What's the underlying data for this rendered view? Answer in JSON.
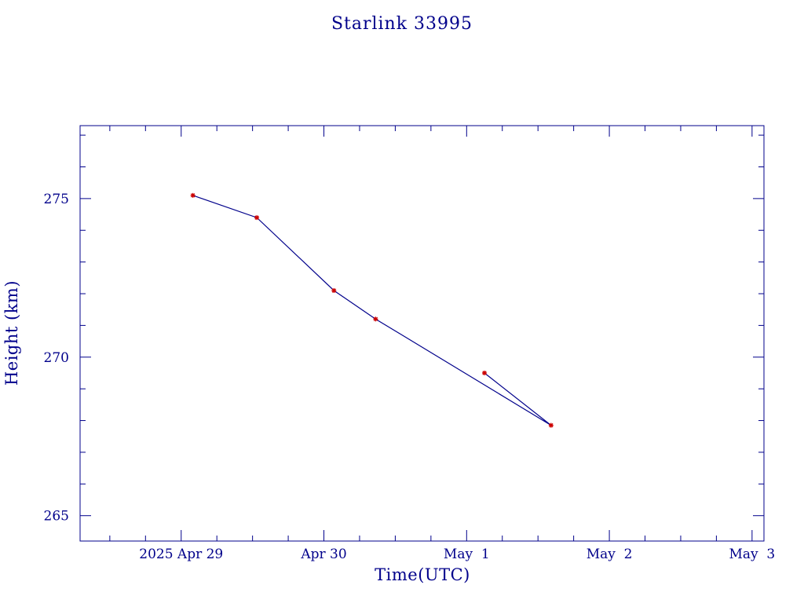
{
  "chart_data": {
    "type": "line",
    "title": "Starlink 33995",
    "xlabel": "Time(UTC)",
    "ylabel": "Height (km)",
    "x_tick_labels": [
      "2025 Apr 29",
      "Apr 30",
      "May  1",
      "May  2",
      "May  3"
    ],
    "x_tick_dates": [
      "2025-04-29",
      "2025-04-30",
      "2025-05-01",
      "2025-05-02",
      "2025-05-03"
    ],
    "xlim": [
      "2025-04-28T07:00",
      "2025-05-03T02:00"
    ],
    "y_ticks": [
      265,
      270,
      275
    ],
    "ylim": [
      264.2,
      277.3
    ],
    "grid": false,
    "series": [
      {
        "x": [
          "2025-04-29T01:58",
          "2025-04-29T12:43",
          "2025-04-30T01:41",
          "2025-04-30T08:42",
          "2025-05-01T14:12",
          "2025-05-01T03:00"
        ],
        "y": [
          275.1,
          274.4,
          272.1,
          271.2,
          267.85,
          269.5
        ],
        "line_color": "#00008b",
        "marker_color": "#cc0000",
        "marker": "asterisk"
      }
    ]
  }
}
